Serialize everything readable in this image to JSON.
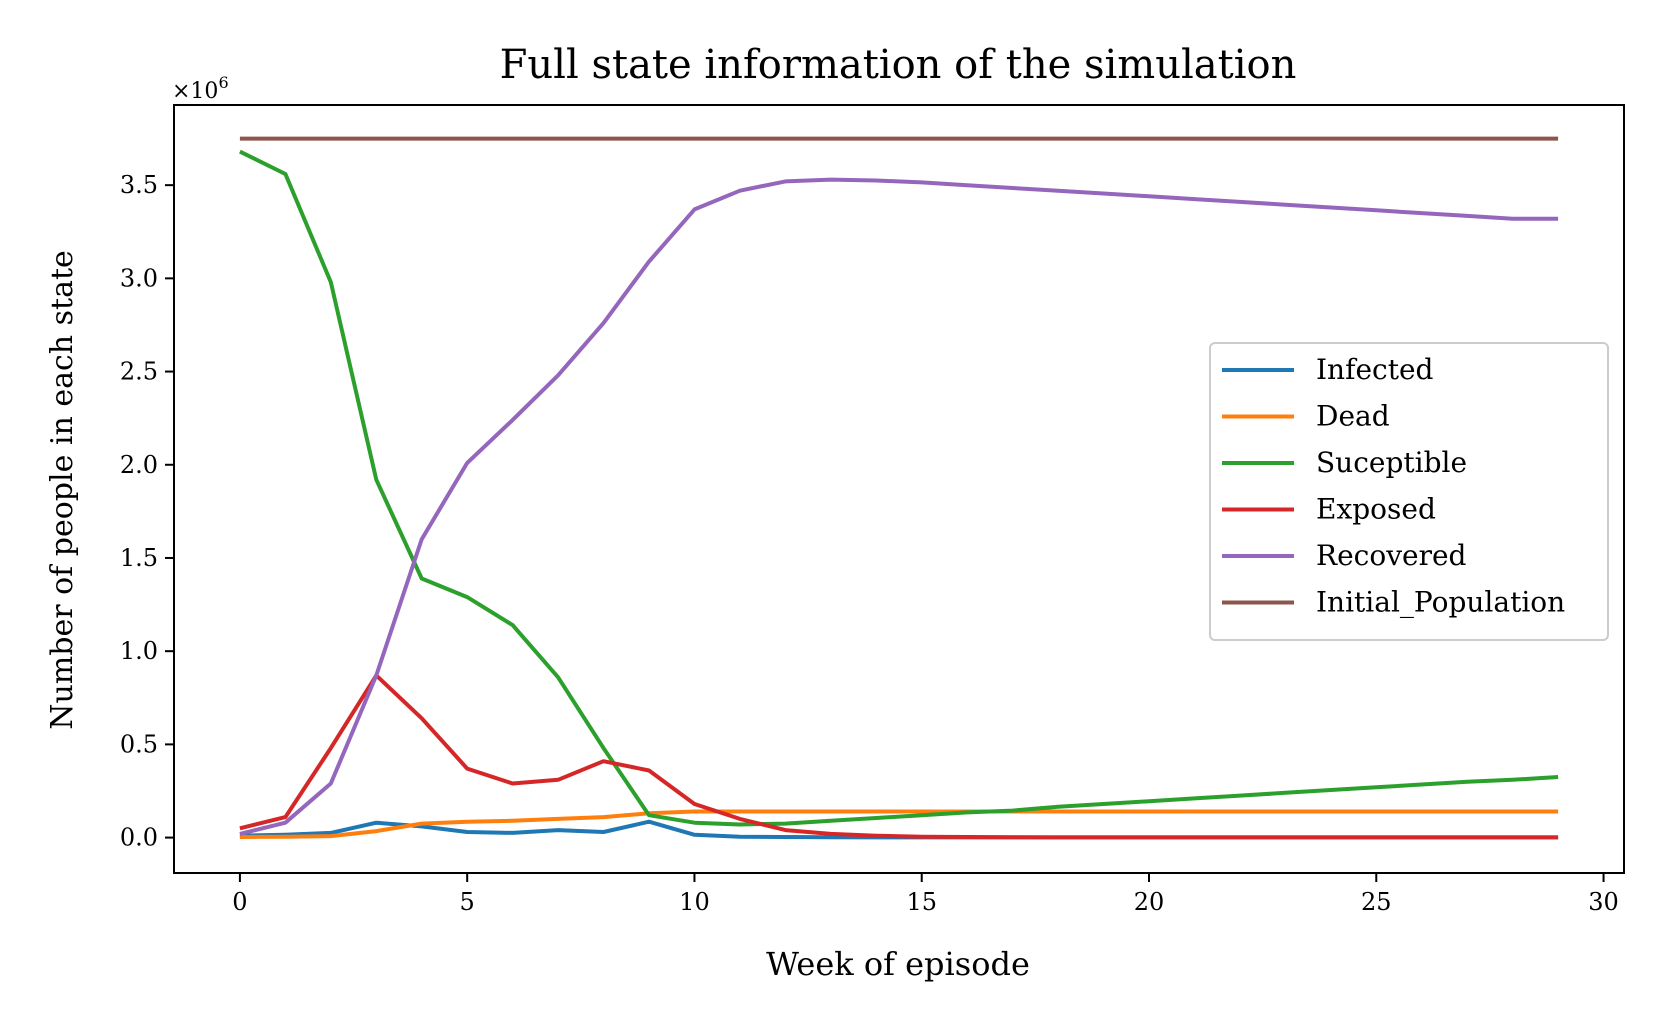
{
  "chart_data": {
    "type": "line",
    "title": "Full state information of the simulation",
    "xlabel": "Week of episode",
    "ylabel": "Number of people in each state",
    "y_multiplier": "×10",
    "y_multiplier_exponent": "6",
    "xlim": [
      -1.45,
      30.45
    ],
    "ylim": [
      -0.19,
      3.93
    ],
    "x_ticks": [
      0,
      5,
      10,
      15,
      20,
      25,
      30
    ],
    "x_tick_labels": [
      "0",
      "5",
      "10",
      "15",
      "20",
      "25",
      "30"
    ],
    "y_ticks": [
      0.0,
      0.5,
      1.0,
      1.5,
      2.0,
      2.5,
      3.0,
      3.5
    ],
    "y_tick_labels": [
      "0.0",
      "0.5",
      "1.0",
      "1.5",
      "2.0",
      "2.5",
      "3.0",
      "3.5"
    ],
    "grid": false,
    "legend_position": "center-right",
    "x": [
      0,
      1,
      2,
      3,
      4,
      5,
      6,
      7,
      8,
      9,
      10,
      11,
      12,
      13,
      14,
      15,
      16,
      17,
      18,
      19,
      20,
      21,
      22,
      23,
      24,
      25,
      26,
      27,
      28,
      29
    ],
    "series": [
      {
        "name": "Infected",
        "color": "#1f77b4",
        "values": [
          0.01,
          0.015,
          0.025,
          0.08,
          0.06,
          0.03,
          0.025,
          0.04,
          0.03,
          0.085,
          0.015,
          0.005,
          0.003,
          0.002,
          0.001,
          0.001,
          0.001,
          0.001,
          0.001,
          0.001,
          0.001,
          0.001,
          0.001,
          0.001,
          0.001,
          0.001,
          0.001,
          0.001,
          0.001,
          0.001
        ]
      },
      {
        "name": "Dead",
        "color": "#ff7f0e",
        "values": [
          0.003,
          0.005,
          0.008,
          0.035,
          0.075,
          0.085,
          0.09,
          0.1,
          0.11,
          0.13,
          0.14,
          0.14,
          0.14,
          0.14,
          0.14,
          0.14,
          0.14,
          0.14,
          0.14,
          0.14,
          0.14,
          0.14,
          0.14,
          0.14,
          0.14,
          0.14,
          0.14,
          0.14,
          0.14,
          0.14
        ]
      },
      {
        "name": "Suceptible",
        "color": "#2ca02c",
        "values": [
          3.68,
          3.56,
          2.98,
          1.92,
          1.39,
          1.29,
          1.14,
          0.86,
          0.48,
          0.12,
          0.08,
          0.07,
          0.075,
          0.09,
          0.105,
          0.12,
          0.135,
          0.145,
          0.165,
          0.18,
          0.195,
          0.21,
          0.225,
          0.24,
          0.255,
          0.27,
          0.285,
          0.3,
          0.31,
          0.325
        ]
      },
      {
        "name": "Exposed",
        "color": "#d62728",
        "values": [
          0.05,
          0.11,
          0.48,
          0.87,
          0.64,
          0.37,
          0.29,
          0.31,
          0.41,
          0.36,
          0.18,
          0.1,
          0.04,
          0.02,
          0.01,
          0.005,
          0.003,
          0.002,
          0.001,
          0.001,
          0.001,
          0.001,
          0.001,
          0.001,
          0.001,
          0.001,
          0.001,
          0.001,
          0.001,
          0.001
        ]
      },
      {
        "name": "Recovered",
        "color": "#9467bd",
        "values": [
          0.02,
          0.08,
          0.29,
          0.87,
          1.6,
          2.01,
          2.24,
          2.48,
          2.76,
          3.09,
          3.37,
          3.47,
          3.52,
          3.53,
          3.525,
          3.515,
          3.5,
          3.485,
          3.47,
          3.455,
          3.44,
          3.425,
          3.41,
          3.395,
          3.38,
          3.365,
          3.35,
          3.335,
          3.32,
          3.32
        ]
      },
      {
        "name": "Initial_Population",
        "color": "#8c564b",
        "values": [
          3.75,
          3.75,
          3.75,
          3.75,
          3.75,
          3.75,
          3.75,
          3.75,
          3.75,
          3.75,
          3.75,
          3.75,
          3.75,
          3.75,
          3.75,
          3.75,
          3.75,
          3.75,
          3.75,
          3.75,
          3.75,
          3.75,
          3.75,
          3.75,
          3.75,
          3.75,
          3.75,
          3.75,
          3.75,
          3.75
        ]
      }
    ]
  }
}
